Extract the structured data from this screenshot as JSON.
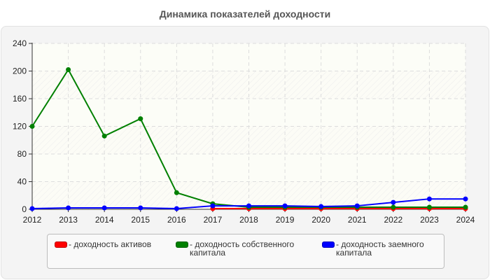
{
  "chart_data": {
    "type": "line",
    "title": "Динамика показателей доходности",
    "xlabel": "",
    "ylabel": "",
    "x": [
      "2012",
      "2013",
      "2014",
      "2015",
      "2016",
      "2017",
      "2018",
      "2019",
      "2020",
      "2021",
      "2022",
      "2023",
      "2024"
    ],
    "y_ticks": [
      "0",
      "40",
      "80",
      "120",
      "160",
      "200",
      "240"
    ],
    "ylim": [
      0,
      240
    ],
    "grid": true,
    "legend_position": "bottom",
    "series": [
      {
        "name": "- доходность активов",
        "color": "#ff0000",
        "values": [
          null,
          null,
          null,
          null,
          null,
          1,
          1,
          1,
          1,
          1,
          1,
          1,
          1
        ]
      },
      {
        "name": "- доходность собственного капитала",
        "color": "#008000",
        "values": [
          120,
          202,
          106,
          131,
          24,
          8,
          3,
          3,
          3,
          3,
          3,
          3,
          3
        ]
      },
      {
        "name": "- доходность заемного капитала",
        "color": "#0000ff",
        "values": [
          1,
          2,
          2,
          2,
          1,
          5,
          5,
          5,
          4,
          5,
          10,
          15,
          15
        ]
      }
    ]
  },
  "legend": {
    "items": [
      {
        "label": "- доходность активов",
        "color": "#ff0000"
      },
      {
        "label": "- доходность собственного\nкапитала",
        "color": "#008000"
      },
      {
        "label": "- доходность заемного\nкапитала",
        "color": "#0000ff"
      }
    ]
  }
}
